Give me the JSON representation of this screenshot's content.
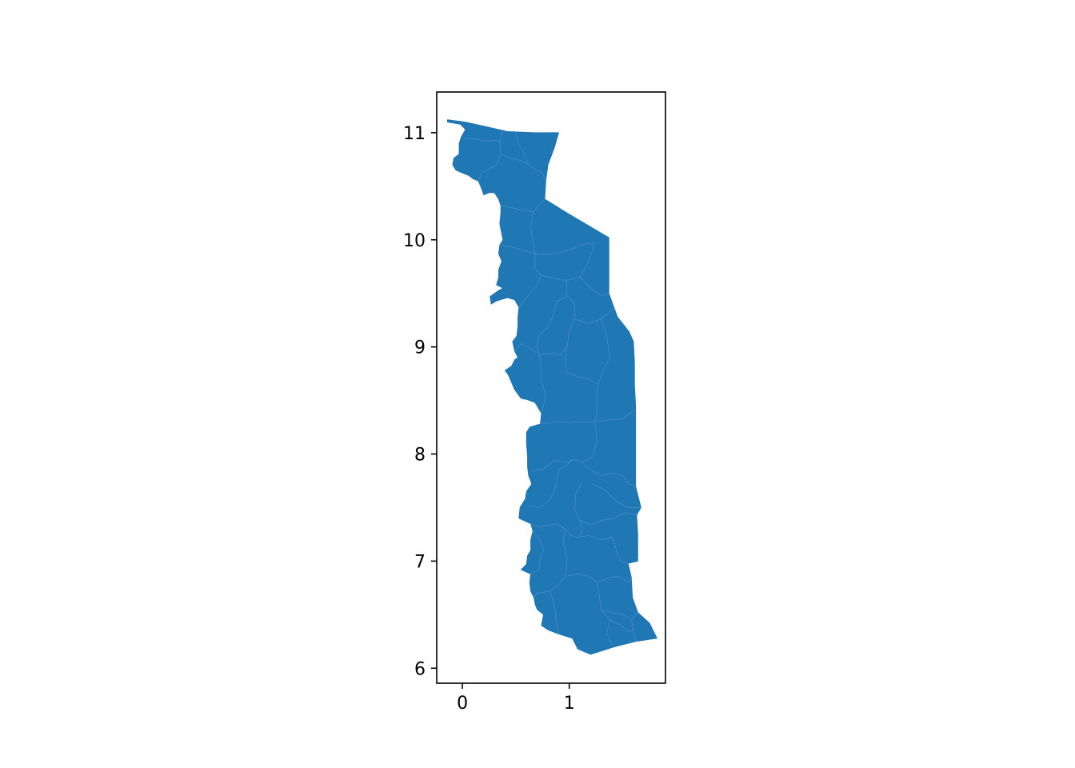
{
  "chart_data": {
    "type": "map",
    "xlim": [
      -0.24,
      1.9
    ],
    "ylim": [
      5.86,
      11.38
    ],
    "x_ticks": [
      {
        "value": 0,
        "label": "0"
      },
      {
        "value": 1,
        "label": "1"
      }
    ],
    "y_ticks": [
      {
        "value": 6,
        "label": "6"
      },
      {
        "value": 7,
        "label": "7"
      },
      {
        "value": 8,
        "label": "8"
      },
      {
        "value": 9,
        "label": "9"
      },
      {
        "value": 10,
        "label": "10"
      },
      {
        "value": 11,
        "label": "11"
      }
    ],
    "fill_color": "#1f77b4",
    "boundary_color": "#4a90c8",
    "grid": false,
    "outline": [
      [
        -0.14,
        11.12
      ],
      [
        0.02,
        11.1
      ],
      [
        0.2,
        11.06
      ],
      [
        0.42,
        11.01
      ],
      [
        0.67,
        11.0
      ],
      [
        0.9,
        11.0
      ],
      [
        0.86,
        10.86
      ],
      [
        0.8,
        10.7
      ],
      [
        0.78,
        10.55
      ],
      [
        0.77,
        10.38
      ],
      [
        0.98,
        10.25
      ],
      [
        1.37,
        10.02
      ],
      [
        1.37,
        9.85
      ],
      [
        1.37,
        9.5
      ],
      [
        1.42,
        9.36
      ],
      [
        1.45,
        9.28
      ],
      [
        1.56,
        9.14
      ],
      [
        1.6,
        9.05
      ],
      [
        1.61,
        8.85
      ],
      [
        1.61,
        8.65
      ],
      [
        1.62,
        8.45
      ],
      [
        1.62,
        8.2
      ],
      [
        1.62,
        7.95
      ],
      [
        1.62,
        7.7
      ],
      [
        1.67,
        7.5
      ],
      [
        1.63,
        7.43
      ],
      [
        1.64,
        7.25
      ],
      [
        1.64,
        7.0
      ],
      [
        1.55,
        6.98
      ],
      [
        1.58,
        6.85
      ],
      [
        1.59,
        6.66
      ],
      [
        1.64,
        6.52
      ],
      [
        1.75,
        6.42
      ],
      [
        1.82,
        6.28
      ],
      [
        1.62,
        6.25
      ],
      [
        1.42,
        6.2
      ],
      [
        1.2,
        6.13
      ],
      [
        1.08,
        6.18
      ],
      [
        1.03,
        6.28
      ],
      [
        0.9,
        6.32
      ],
      [
        0.8,
        6.36
      ],
      [
        0.74,
        6.4
      ],
      [
        0.76,
        6.5
      ],
      [
        0.7,
        6.55
      ],
      [
        0.68,
        6.6
      ],
      [
        0.67,
        6.66
      ],
      [
        0.64,
        6.72
      ],
      [
        0.63,
        6.8
      ],
      [
        0.64,
        6.88
      ],
      [
        0.55,
        6.92
      ],
      [
        0.6,
        6.97
      ],
      [
        0.61,
        7.05
      ],
      [
        0.64,
        7.1
      ],
      [
        0.64,
        7.2
      ],
      [
        0.66,
        7.28
      ],
      [
        0.64,
        7.35
      ],
      [
        0.53,
        7.4
      ],
      [
        0.54,
        7.5
      ],
      [
        0.59,
        7.58
      ],
      [
        0.6,
        7.65
      ],
      [
        0.65,
        7.72
      ],
      [
        0.62,
        7.8
      ],
      [
        0.61,
        7.88
      ],
      [
        0.61,
        7.98
      ],
      [
        0.6,
        8.1
      ],
      [
        0.6,
        8.2
      ],
      [
        0.63,
        8.25
      ],
      [
        0.73,
        8.28
      ],
      [
        0.74,
        8.38
      ],
      [
        0.71,
        8.43
      ],
      [
        0.68,
        8.48
      ],
      [
        0.6,
        8.51
      ],
      [
        0.55,
        8.52
      ],
      [
        0.49,
        8.6
      ],
      [
        0.43,
        8.74
      ],
      [
        0.4,
        8.78
      ],
      [
        0.46,
        8.82
      ],
      [
        0.49,
        8.88
      ],
      [
        0.52,
        8.9
      ],
      [
        0.49,
        8.96
      ],
      [
        0.47,
        9.05
      ],
      [
        0.51,
        9.1
      ],
      [
        0.52,
        9.2
      ],
      [
        0.52,
        9.28
      ],
      [
        0.53,
        9.37
      ],
      [
        0.49,
        9.44
      ],
      [
        0.42,
        9.46
      ],
      [
        0.32,
        9.43
      ],
      [
        0.27,
        9.4
      ],
      [
        0.26,
        9.47
      ],
      [
        0.33,
        9.52
      ],
      [
        0.38,
        9.55
      ],
      [
        0.32,
        9.58
      ],
      [
        0.34,
        9.65
      ],
      [
        0.34,
        9.72
      ],
      [
        0.37,
        9.8
      ],
      [
        0.34,
        9.87
      ],
      [
        0.35,
        9.95
      ],
      [
        0.38,
        10.0
      ],
      [
        0.37,
        10.05
      ],
      [
        0.35,
        10.15
      ],
      [
        0.36,
        10.25
      ],
      [
        0.36,
        10.32
      ],
      [
        0.34,
        10.38
      ],
      [
        0.3,
        10.44
      ],
      [
        0.25,
        10.44
      ],
      [
        0.2,
        10.42
      ],
      [
        0.18,
        10.48
      ],
      [
        0.15,
        10.55
      ],
      [
        0.1,
        10.57
      ],
      [
        0.06,
        10.6
      ],
      [
        0.01,
        10.62
      ],
      [
        -0.06,
        10.65
      ],
      [
        -0.09,
        10.7
      ],
      [
        -0.08,
        10.76
      ],
      [
        -0.03,
        10.8
      ],
      [
        -0.03,
        10.9
      ],
      [
        -0.01,
        10.96
      ],
      [
        0.03,
        11.03
      ],
      [
        -0.02,
        11.08
      ],
      [
        -0.14,
        11.1
      ]
    ],
    "boundaries": [
      [
        [
          0.38,
          11.03
        ],
        [
          0.35,
          10.92
        ],
        [
          0.36,
          10.8
        ],
        [
          0.32,
          10.7
        ],
        [
          0.25,
          10.66
        ],
        [
          0.18,
          10.62
        ],
        [
          0.15,
          10.55
        ]
      ],
      [
        [
          0.36,
          10.8
        ],
        [
          0.45,
          10.76
        ],
        [
          0.55,
          10.74
        ],
        [
          0.62,
          10.7
        ],
        [
          0.68,
          10.66
        ],
        [
          0.75,
          10.62
        ],
        [
          0.78,
          10.55
        ]
      ],
      [
        [
          0.02,
          10.95
        ],
        [
          0.12,
          10.94
        ],
        [
          0.22,
          10.92
        ],
        [
          0.3,
          10.93
        ],
        [
          0.36,
          10.92
        ]
      ],
      [
        [
          0.5,
          11.0
        ],
        [
          0.52,
          10.9
        ],
        [
          0.57,
          10.82
        ],
        [
          0.62,
          10.7
        ]
      ],
      [
        [
          0.36,
          10.32
        ],
        [
          0.46,
          10.3
        ],
        [
          0.56,
          10.28
        ],
        [
          0.66,
          10.26
        ],
        [
          0.77,
          10.38
        ]
      ],
      [
        [
          0.66,
          10.26
        ],
        [
          0.64,
          10.12
        ],
        [
          0.66,
          9.98
        ],
        [
          0.68,
          9.87
        ]
      ],
      [
        [
          0.37,
          9.95
        ],
        [
          0.47,
          9.93
        ],
        [
          0.58,
          9.9
        ],
        [
          0.68,
          9.87
        ],
        [
          0.8,
          9.86
        ],
        [
          0.92,
          9.88
        ],
        [
          1.03,
          9.92
        ],
        [
          1.14,
          9.96
        ],
        [
          1.24,
          9.97
        ]
      ],
      [
        [
          1.24,
          9.97
        ],
        [
          1.18,
          9.8
        ],
        [
          1.1,
          9.65
        ],
        [
          0.97,
          9.62
        ],
        [
          0.85,
          9.64
        ],
        [
          0.74,
          9.67
        ],
        [
          0.68,
          9.73
        ],
        [
          0.68,
          9.87
        ]
      ],
      [
        [
          0.53,
          9.37
        ],
        [
          0.6,
          9.46
        ],
        [
          0.68,
          9.55
        ],
        [
          0.74,
          9.67
        ]
      ],
      [
        [
          1.1,
          9.65
        ],
        [
          1.2,
          9.55
        ],
        [
          1.3,
          9.48
        ],
        [
          1.37,
          9.5
        ]
      ],
      [
        [
          0.97,
          9.62
        ],
        [
          0.98,
          9.48
        ],
        [
          1.05,
          9.4
        ],
        [
          1.05,
          9.26
        ],
        [
          1.18,
          9.22
        ],
        [
          1.3,
          9.26
        ],
        [
          1.42,
          9.36
        ]
      ],
      [
        [
          0.98,
          9.48
        ],
        [
          0.88,
          9.42
        ],
        [
          0.85,
          9.3
        ],
        [
          0.8,
          9.18
        ],
        [
          0.72,
          9.12
        ],
        [
          0.7,
          9.02
        ],
        [
          0.72,
          8.93
        ]
      ],
      [
        [
          1.05,
          9.26
        ],
        [
          1.0,
          9.15
        ],
        [
          0.98,
          9.0
        ],
        [
          0.92,
          8.92
        ],
        [
          0.85,
          8.94
        ],
        [
          0.72,
          8.93
        ],
        [
          0.64,
          8.98
        ],
        [
          0.55,
          9.03
        ],
        [
          0.49,
          8.96
        ]
      ],
      [
        [
          1.3,
          9.26
        ],
        [
          1.35,
          9.1
        ],
        [
          1.38,
          8.9
        ],
        [
          1.32,
          8.78
        ],
        [
          1.27,
          8.65
        ],
        [
          1.25,
          8.52
        ],
        [
          1.26,
          8.4
        ],
        [
          1.24,
          8.3
        ]
      ],
      [
        [
          0.98,
          9.0
        ],
        [
          0.96,
          8.88
        ],
        [
          0.98,
          8.76
        ],
        [
          1.08,
          8.72
        ],
        [
          1.18,
          8.7
        ],
        [
          1.27,
          8.65
        ]
      ],
      [
        [
          0.72,
          8.93
        ],
        [
          0.74,
          8.8
        ],
        [
          0.74,
          8.68
        ],
        [
          0.78,
          8.55
        ],
        [
          0.74,
          8.38
        ]
      ],
      [
        [
          0.73,
          8.28
        ],
        [
          0.86,
          8.3
        ],
        [
          1.0,
          8.29
        ],
        [
          1.12,
          8.3
        ],
        [
          1.24,
          8.3
        ],
        [
          1.38,
          8.32
        ],
        [
          1.5,
          8.33
        ],
        [
          1.62,
          8.42
        ]
      ],
      [
        [
          1.24,
          8.3
        ],
        [
          1.26,
          8.12
        ],
        [
          1.22,
          7.98
        ],
        [
          1.12,
          7.92
        ],
        [
          1.04,
          7.95
        ],
        [
          0.95,
          7.92
        ],
        [
          0.86,
          7.94
        ],
        [
          0.76,
          7.86
        ],
        [
          0.65,
          7.84
        ]
      ],
      [
        [
          1.12,
          7.92
        ],
        [
          1.2,
          7.85
        ],
        [
          1.3,
          7.8
        ],
        [
          1.4,
          7.82
        ],
        [
          1.5,
          7.8
        ],
        [
          1.56,
          7.72
        ],
        [
          1.62,
          7.7
        ]
      ],
      [
        [
          1.04,
          7.95
        ],
        [
          0.98,
          7.9
        ],
        [
          0.9,
          7.85
        ],
        [
          0.88,
          7.75
        ],
        [
          0.86,
          7.65
        ],
        [
          0.8,
          7.56
        ],
        [
          0.72,
          7.5
        ],
        [
          0.62,
          7.52
        ]
      ],
      [
        [
          1.12,
          7.75
        ],
        [
          1.06,
          7.62
        ],
        [
          1.05,
          7.48
        ],
        [
          1.1,
          7.38
        ],
        [
          1.12,
          7.28
        ],
        [
          1.08,
          7.22
        ]
      ],
      [
        [
          1.22,
          7.72
        ],
        [
          1.34,
          7.66
        ],
        [
          1.44,
          7.56
        ],
        [
          1.54,
          7.5
        ],
        [
          1.67,
          7.5
        ]
      ],
      [
        [
          1.1,
          7.38
        ],
        [
          1.2,
          7.34
        ],
        [
          1.3,
          7.38
        ],
        [
          1.42,
          7.4
        ],
        [
          1.52,
          7.45
        ],
        [
          1.63,
          7.43
        ]
      ],
      [
        [
          0.64,
          7.35
        ],
        [
          0.72,
          7.32
        ],
        [
          0.8,
          7.33
        ],
        [
          0.88,
          7.35
        ],
        [
          0.96,
          7.3
        ],
        [
          1.02,
          7.24
        ],
        [
          1.08,
          7.22
        ],
        [
          1.18,
          7.24
        ],
        [
          1.3,
          7.2
        ],
        [
          1.4,
          7.22
        ]
      ],
      [
        [
          1.4,
          7.22
        ],
        [
          1.44,
          7.1
        ],
        [
          1.48,
          7.0
        ],
        [
          1.55,
          6.98
        ]
      ],
      [
        [
          0.66,
          7.28
        ],
        [
          0.72,
          7.2
        ],
        [
          0.76,
          7.12
        ],
        [
          0.72,
          7.0
        ],
        [
          0.72,
          6.92
        ],
        [
          0.64,
          6.88
        ]
      ],
      [
        [
          0.96,
          7.3
        ],
        [
          0.94,
          7.18
        ],
        [
          0.97,
          7.08
        ],
        [
          0.98,
          6.96
        ],
        [
          0.96,
          6.86
        ],
        [
          0.9,
          6.78
        ],
        [
          0.82,
          6.72
        ],
        [
          0.7,
          6.7
        ],
        [
          0.67,
          6.66
        ]
      ],
      [
        [
          0.98,
          6.86
        ],
        [
          1.08,
          6.88
        ],
        [
          1.18,
          6.86
        ],
        [
          1.26,
          6.8
        ],
        [
          1.36,
          6.84
        ],
        [
          1.46,
          6.86
        ],
        [
          1.55,
          6.8
        ],
        [
          1.58,
          6.85
        ]
      ],
      [
        [
          1.26,
          6.8
        ],
        [
          1.28,
          6.68
        ],
        [
          1.3,
          6.55
        ],
        [
          1.38,
          6.45
        ],
        [
          1.35,
          6.32
        ],
        [
          1.4,
          6.22
        ]
      ],
      [
        [
          0.82,
          6.72
        ],
        [
          0.85,
          6.62
        ],
        [
          0.87,
          6.52
        ],
        [
          0.88,
          6.42
        ],
        [
          0.9,
          6.32
        ]
      ],
      [
        [
          1.3,
          6.55
        ],
        [
          1.4,
          6.52
        ],
        [
          1.5,
          6.5
        ],
        [
          1.58,
          6.46
        ],
        [
          1.64,
          6.52
        ]
      ],
      [
        [
          1.58,
          6.46
        ],
        [
          1.6,
          6.36
        ],
        [
          1.62,
          6.25
        ]
      ],
      [
        [
          1.38,
          6.45
        ],
        [
          1.48,
          6.4
        ],
        [
          1.56,
          6.34
        ],
        [
          1.6,
          6.36
        ]
      ]
    ]
  }
}
